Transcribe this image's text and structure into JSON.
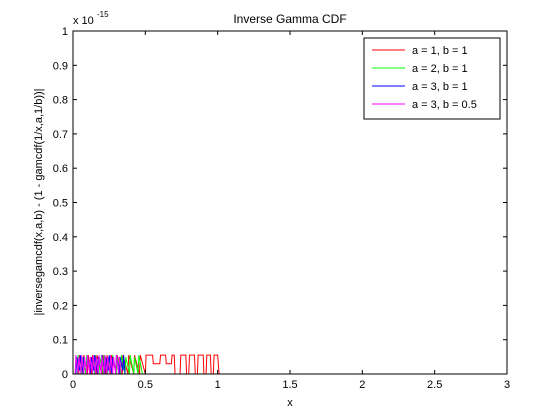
{
  "chart_data": {
    "type": "line",
    "title": "Inverse Gamma CDF",
    "xlabel": "x",
    "ylabel": "|inversegamcdf(x,a,b) - (1 - gamcdf(1/x,a,1/b))|",
    "xlim": [
      0,
      3
    ],
    "ylim": [
      0,
      1
    ],
    "y_exponent_label": "x 10",
    "y_exponent_power": "-15",
    "x_ticks": [
      "0",
      "0.5",
      "1",
      "1.5",
      "2",
      "2.5",
      "3"
    ],
    "y_ticks": [
      "0",
      "0.1",
      "0.2",
      "0.3",
      "0.4",
      "0.5",
      "0.6",
      "0.7",
      "0.8",
      "0.9",
      "1"
    ],
    "grid": false,
    "legend_position": "top-right",
    "series": [
      {
        "name": "a = 1, b = 1",
        "color": "#ff0000",
        "x": [
          0,
          0.04,
          0.045,
          0.07,
          0.075,
          0.1,
          0.105,
          0.13,
          0.135,
          0.16,
          0.165,
          0.2,
          0.205,
          0.23,
          0.235,
          0.26,
          0.265,
          0.3,
          0.305,
          0.34,
          0.345,
          0.38,
          0.385,
          0.42,
          0.425,
          0.46,
          0.465,
          0.5,
          0.505,
          0.55,
          0.555,
          0.6,
          0.605,
          0.64,
          0.645,
          0.68,
          0.685,
          0.7,
          0.705,
          0.74,
          0.745,
          0.78,
          0.785,
          0.8,
          0.805,
          0.84,
          0.845,
          0.86,
          0.865,
          0.9,
          0.905,
          0.92,
          0.925,
          0.95,
          0.955,
          0.97,
          0.975,
          1.0,
          1.01,
          3.0
        ],
        "y": [
          0,
          0,
          0.055,
          0,
          0.055,
          0,
          0.055,
          0,
          0.055,
          0,
          0.055,
          0,
          0.055,
          0,
          0.055,
          0,
          0.055,
          0,
          0.055,
          0,
          0.055,
          0,
          0.055,
          0,
          0.055,
          0,
          0.055,
          0,
          0.055,
          0.055,
          0.03,
          0.03,
          0.055,
          0.055,
          0.03,
          0.03,
          0.055,
          0.055,
          0,
          0,
          0.055,
          0.055,
          0,
          0,
          0.055,
          0.055,
          0,
          0,
          0.055,
          0.055,
          0,
          0,
          0.055,
          0.055,
          0,
          0,
          0.055,
          0.055,
          0,
          0
        ]
      },
      {
        "name": "a = 2, b = 1",
        "color": "#00ff00",
        "x": [
          0,
          0.03,
          0.035,
          0.06,
          0.065,
          0.09,
          0.095,
          0.12,
          0.125,
          0.15,
          0.155,
          0.18,
          0.185,
          0.21,
          0.215,
          0.24,
          0.245,
          0.27,
          0.275,
          0.3,
          0.305,
          0.33,
          0.335,
          0.36,
          0.365,
          0.39,
          0.395,
          0.42,
          0.425,
          0.45,
          0.455,
          0.48,
          0.49,
          3.0
        ],
        "y": [
          0,
          0,
          0.055,
          0,
          0.05,
          0,
          0.055,
          0,
          0.05,
          0,
          0.055,
          0,
          0.05,
          0,
          0.055,
          0,
          0.05,
          0,
          0.055,
          0,
          0.05,
          0,
          0.055,
          0,
          0.05,
          0,
          0.055,
          0,
          0.05,
          0,
          0.055,
          0,
          0,
          0
        ]
      },
      {
        "name": "a = 3, b = 1",
        "color": "#0000ff",
        "x": [
          0,
          0.02,
          0.025,
          0.045,
          0.05,
          0.07,
          0.075,
          0.095,
          0.1,
          0.12,
          0.125,
          0.145,
          0.15,
          0.17,
          0.175,
          0.195,
          0.2,
          0.22,
          0.225,
          0.245,
          0.25,
          0.27,
          0.275,
          0.295,
          0.3,
          0.32,
          0.325,
          0.345,
          0.35,
          0.36,
          3.0
        ],
        "y": [
          0,
          0,
          0.05,
          0.01,
          0.055,
          0,
          0.05,
          0.01,
          0.055,
          0,
          0.05,
          0.01,
          0.055,
          0,
          0.05,
          0.01,
          0.055,
          0,
          0.05,
          0.01,
          0.055,
          0,
          0.05,
          0.01,
          0.055,
          0,
          0.05,
          0.01,
          0.055,
          0,
          0
        ]
      },
      {
        "name": "a = 3, b = 0.5",
        "color": "#ff00ff",
        "x": [
          0,
          0.015,
          0.02,
          0.035,
          0.04,
          0.055,
          0.06,
          0.075,
          0.08,
          0.095,
          0.1,
          0.115,
          0.12,
          0.135,
          0.14,
          0.155,
          0.16,
          0.175,
          0.18,
          0.195,
          0.2,
          0.215,
          0.22,
          0.235,
          0.24,
          0.255,
          0.26,
          0.275,
          0.28,
          0.295,
          0.3,
          0.315,
          0.32,
          0.335,
          0.34,
          3.0
        ],
        "y": [
          0,
          0,
          0.055,
          0,
          0.05,
          0,
          0.055,
          0,
          0.05,
          0,
          0.055,
          0,
          0.05,
          0,
          0.055,
          0,
          0.05,
          0,
          0.055,
          0,
          0.05,
          0,
          0.055,
          0,
          0.05,
          0,
          0.055,
          0,
          0.05,
          0,
          0.055,
          0,
          0.05,
          0,
          0,
          0
        ]
      }
    ]
  }
}
